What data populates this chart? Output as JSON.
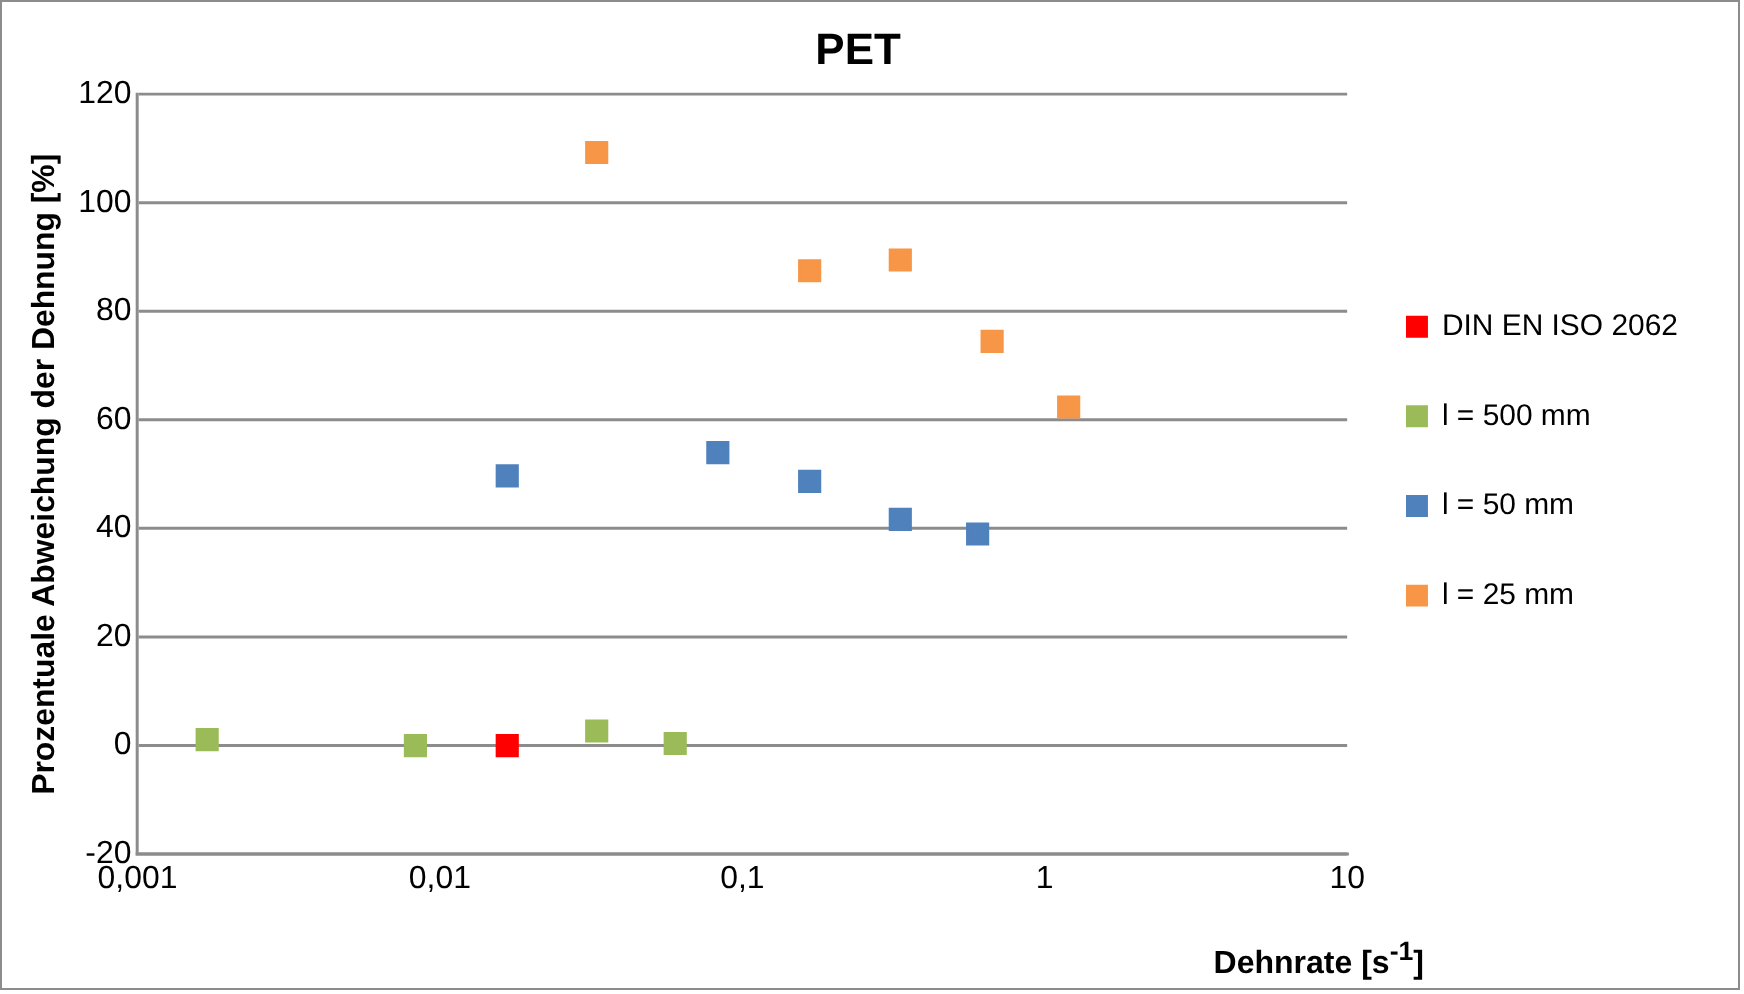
{
  "chart_data": {
    "type": "scatter",
    "title": "PET",
    "xlabel": "Dehnrate [s$^{-1}$]",
    "ylabel": "Prozentuale Abweichung der Dehnung [%]",
    "log": "x",
    "xlim": [
      0.001,
      10
    ],
    "xticks": [
      {
        "value": 0.001,
        "label": "0,001"
      },
      {
        "value": 0.01,
        "label": "0,01"
      },
      {
        "value": 0.1,
        "label": "0,1"
      },
      1,
      10
    ],
    "ylim": [
      -20,
      120
    ],
    "yticks": [
      -20,
      0,
      20,
      40,
      60,
      80,
      100,
      120
    ],
    "grid": "y",
    "legend": "right",
    "marker": "square",
    "series": [
      {
        "name": "DIN EN ISO 2062",
        "color": "#ff0000",
        "x": [
          0.0167
        ],
        "values": [
          0
        ]
      },
      {
        "name": "l = 500 mm",
        "color": "#9bbb59",
        "x": [
          0.0017,
          0.0083,
          0.033,
          0.06
        ],
        "values": [
          1.1,
          0,
          2.7,
          0.4
        ]
      },
      {
        "name": "l = 50 mm",
        "color": "#4f81bd",
        "x": [
          0.0167,
          0.083,
          0.167,
          0.333,
          0.6
        ],
        "values": [
          49.7,
          54,
          48.7,
          41.7,
          39
        ]
      },
      {
        "name": "l = 25 mm",
        "color": "#f79646",
        "x": [
          0.033,
          0.167,
          0.333,
          0.67,
          1.2
        ],
        "values": [
          109.3,
          87.5,
          89.5,
          74.5,
          62.4
        ]
      }
    ]
  }
}
